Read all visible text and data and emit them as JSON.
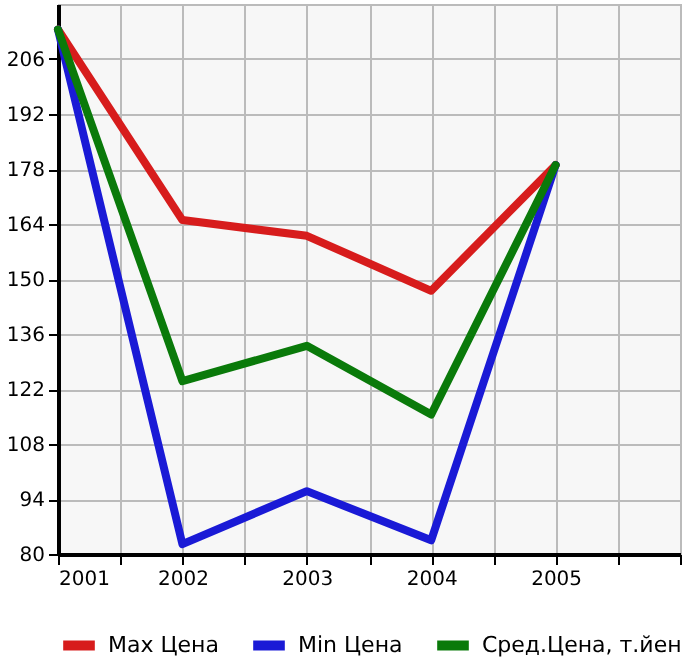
{
  "chart_data": {
    "type": "line",
    "x": [
      2001,
      2002,
      2003,
      2004,
      2005
    ],
    "series": [
      {
        "name": "Max Цена",
        "color": "#d71c1c",
        "values": [
          213.5,
          165,
          161,
          147,
          179
        ]
      },
      {
        "name": "Min Цена",
        "color": "#1a1ad6",
        "values": [
          213.5,
          82.5,
          96,
          83.5,
          179
        ]
      },
      {
        "name": "Сред.Цена, т.йен",
        "color": "#0a7a0a",
        "values": [
          213.5,
          124,
          133,
          115.5,
          179
        ]
      }
    ],
    "xlim": [
      2001,
      2006
    ],
    "xticks": [
      2001,
      {
        "value": 2001.5,
        "label": null
      },
      2002,
      {
        "value": 2002.5,
        "label": null
      },
      2003,
      {
        "value": 2003.5,
        "label": null
      },
      2004,
      {
        "value": 2004.5,
        "label": null
      },
      2005,
      {
        "value": 2005.5,
        "label": null
      },
      {
        "value": 2006,
        "label": null
      }
    ],
    "ylim": [
      80,
      220
    ],
    "yticks": [
      80,
      94,
      108,
      122,
      136,
      150,
      164,
      178,
      192,
      206
    ],
    "grid": true,
    "legend": "bottom",
    "marker": "none",
    "line_style": "solid"
  }
}
